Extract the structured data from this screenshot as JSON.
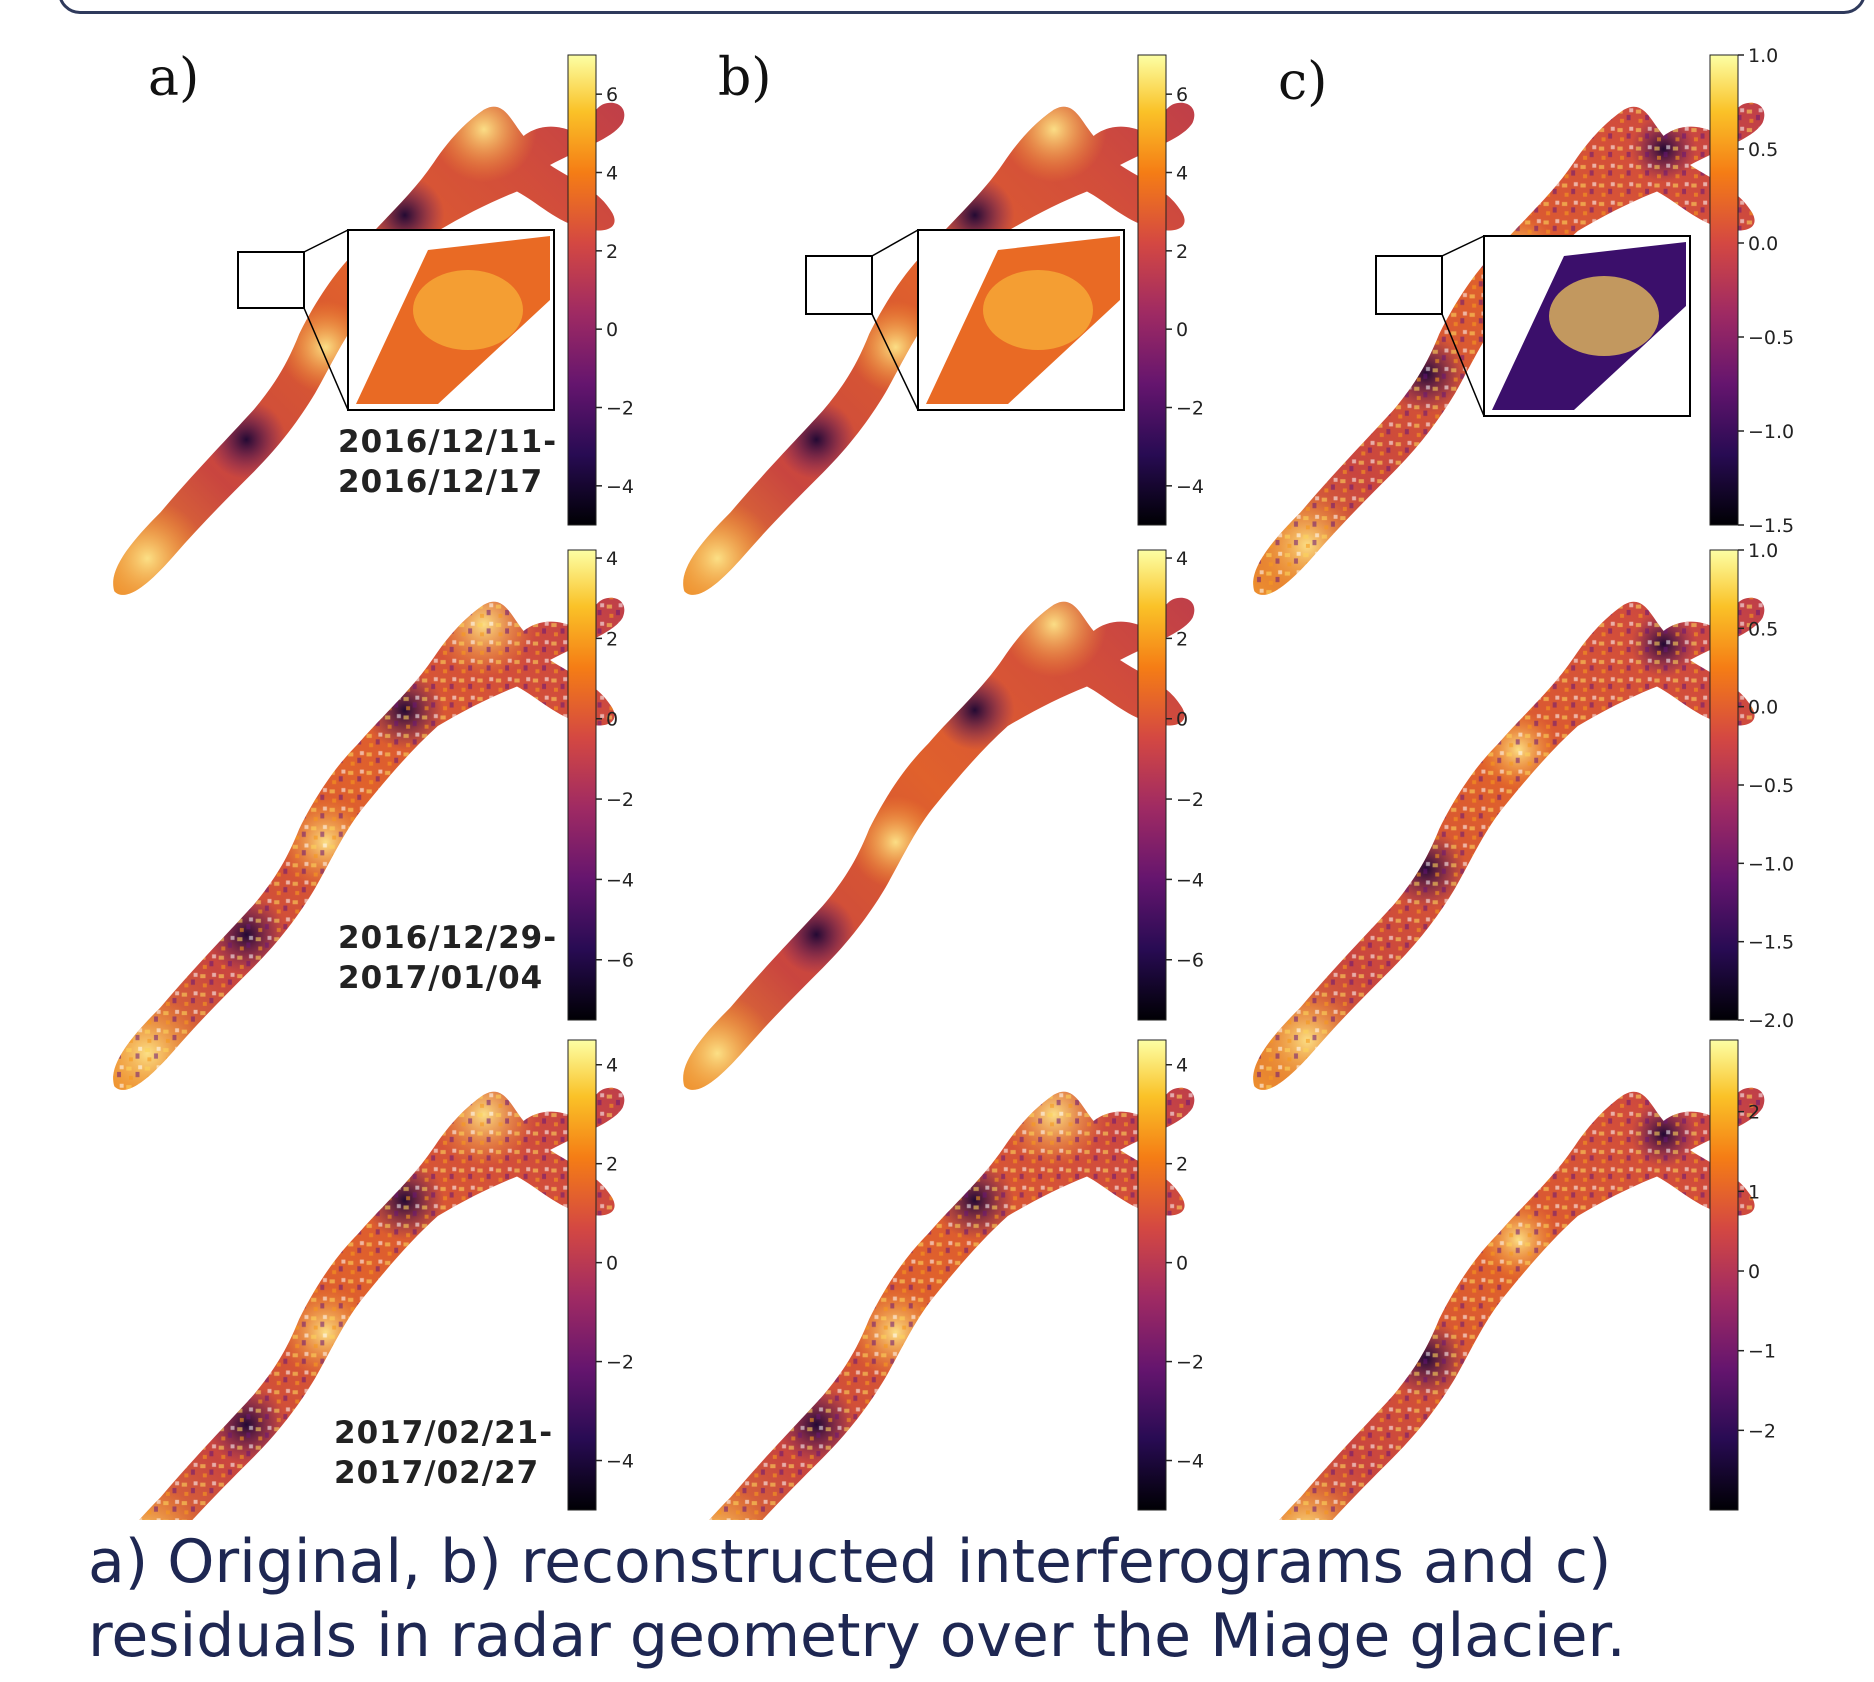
{
  "panel_labels": [
    "a)",
    "b)",
    "c)"
  ],
  "rows": [
    {
      "date": [
        "2016/12/11-",
        "2016/12/17"
      ],
      "colorbars": [
        {
          "ticks": [
            "6",
            "4",
            "2",
            "0",
            "−2",
            "−4"
          ],
          "min": -5,
          "max": 7
        },
        {
          "ticks": [
            "6",
            "4",
            "2",
            "0",
            "−2",
            "−4"
          ],
          "min": -5,
          "max": 7
        },
        {
          "ticks": [
            "1.0",
            "0.5",
            "0.0",
            "−0.5",
            "−1.0",
            "−1.5"
          ],
          "min": -1.5,
          "max": 1.0
        }
      ]
    },
    {
      "date": [
        "2016/12/29-",
        "2017/01/04"
      ],
      "colorbars": [
        {
          "ticks": [
            "4",
            "2",
            "0",
            "−2",
            "−4",
            "−6"
          ],
          "min": -7.5,
          "max": 4.2
        },
        {
          "ticks": [
            "4",
            "2",
            "0",
            "−2",
            "−4",
            "−6"
          ],
          "min": -7.5,
          "max": 4.2
        },
        {
          "ticks": [
            "1.0",
            "0.5",
            "0.0",
            "−0.5",
            "−1.0",
            "−1.5",
            "−2.0"
          ],
          "min": -2.0,
          "max": 1.0
        }
      ]
    },
    {
      "date": [
        "2017/02/21-",
        "2017/02/27"
      ],
      "colorbars": [
        {
          "ticks": [
            "4",
            "2",
            "0",
            "−2",
            "−4"
          ],
          "min": -5,
          "max": 4.5
        },
        {
          "ticks": [
            "4",
            "2",
            "0",
            "−2",
            "−4"
          ],
          "min": -5,
          "max": 4.5
        },
        {
          "ticks": [
            "2",
            "1",
            "0",
            "−1",
            "−2"
          ],
          "min": -3,
          "max": 2.9
        }
      ]
    }
  ],
  "caption": "a) Original, b) reconstructed interferograms and c) residuals in radar geometry over the Miage glacier.",
  "colors": {
    "inferno_dark": "#000004",
    "inferno_purple": "#420a68",
    "inferno_red": "#932667",
    "inferno_orange": "#dd513a",
    "inferno_amber": "#fca50a",
    "inferno_light": "#fcffa4"
  }
}
